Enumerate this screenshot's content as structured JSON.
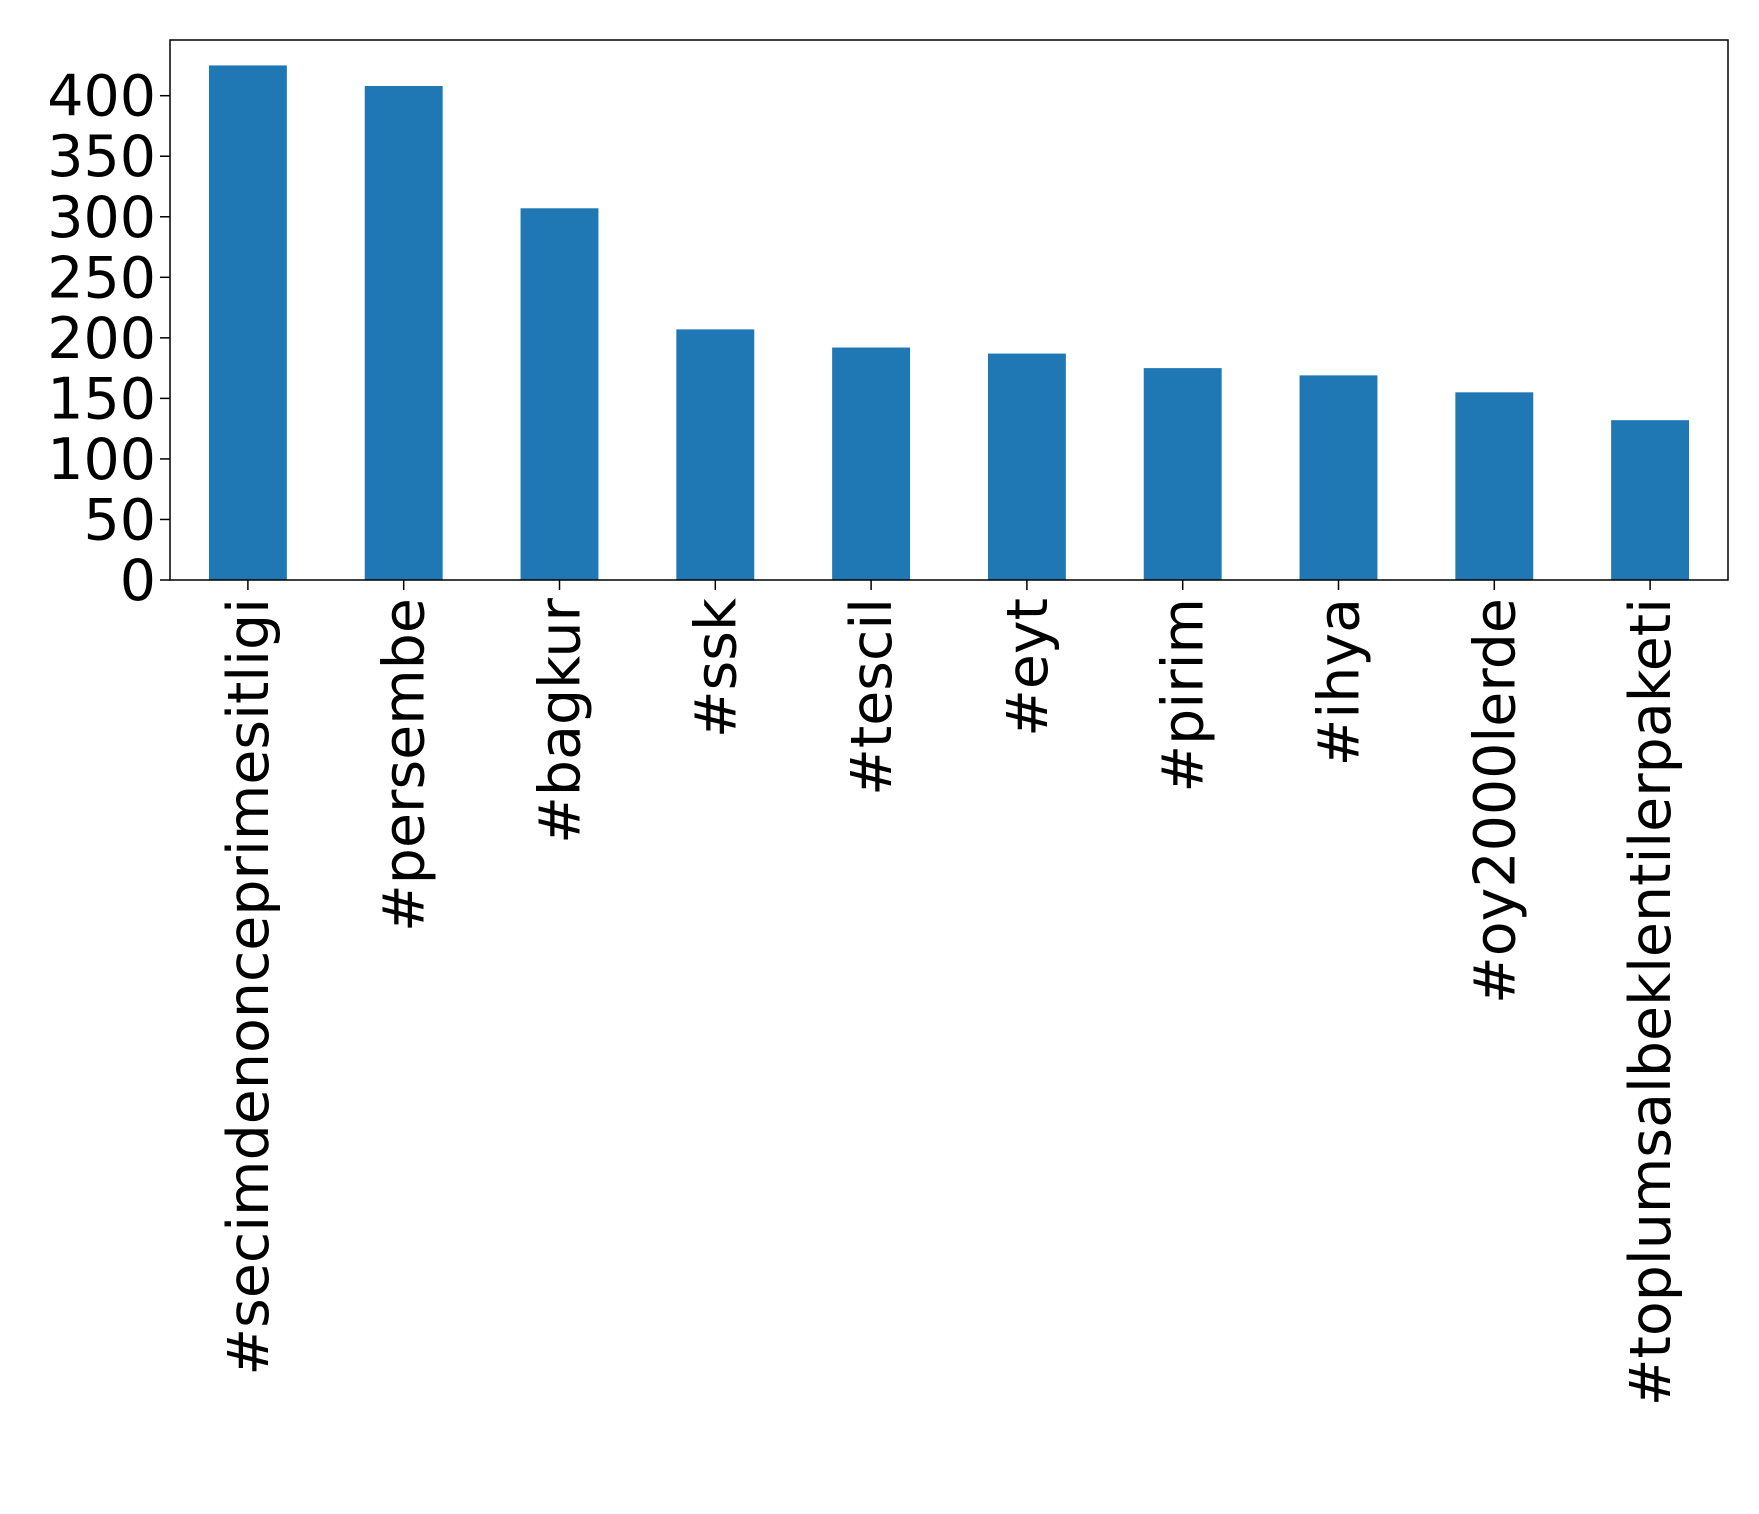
{
  "chart_data": {
    "type": "bar",
    "categories": [
      "#secimdenonceprimesitligi",
      "#persembe",
      "#bagkur",
      "#ssk",
      "#tescil",
      "#eyt",
      "#pirim",
      "#ihya",
      "#oy2000lerde",
      "#toplumsalbeklentilerpaketi"
    ],
    "values": [
      425,
      408,
      307,
      207,
      192,
      187,
      175,
      169,
      155,
      132
    ],
    "color": "#1f77b4",
    "ylim": [
      0,
      446
    ],
    "yticks": [
      0,
      50,
      100,
      150,
      200,
      250,
      300,
      350,
      400
    ]
  }
}
